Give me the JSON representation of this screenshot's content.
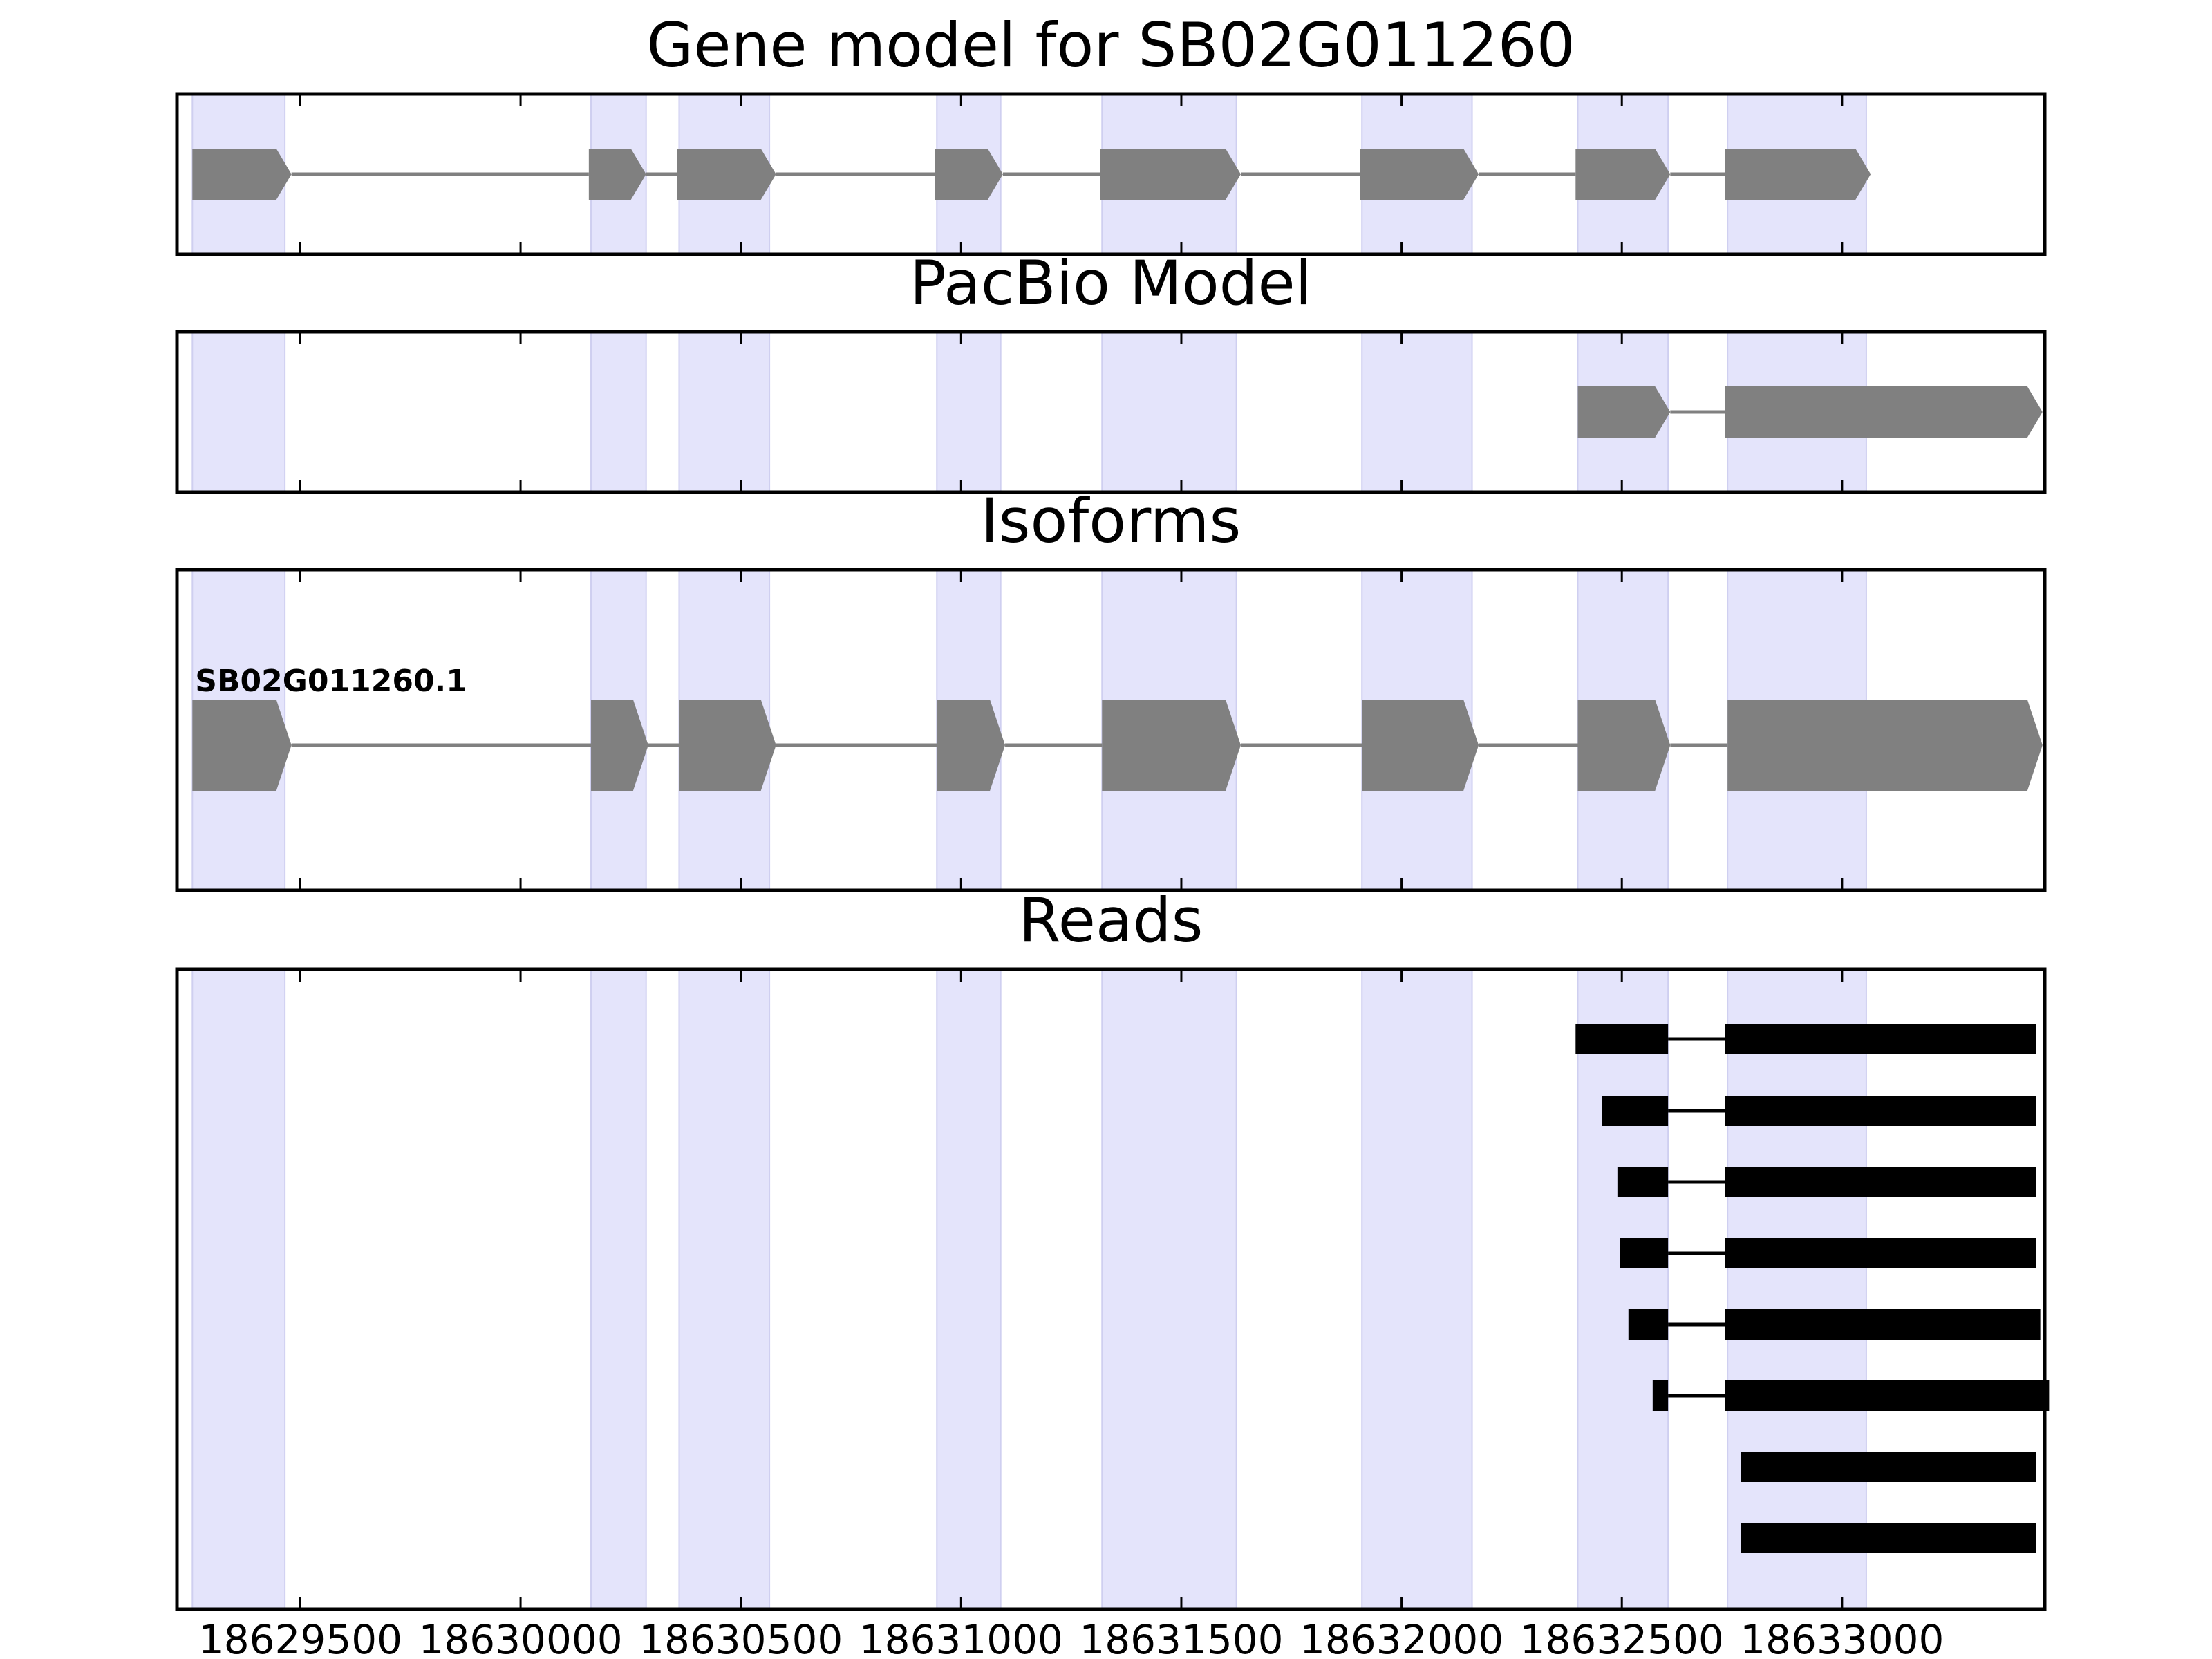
{
  "chart_data": {
    "type": "gene-track",
    "xlim": [
      18629220,
      18633460
    ],
    "ticks": [
      18629500,
      18630000,
      18630500,
      18631000,
      18631500,
      18632000,
      18632500,
      18633000
    ],
    "tick_labels": [
      "18629500",
      "18630000",
      "18630500",
      "18631000",
      "18631500",
      "18632000",
      "18632500",
      "18633000"
    ],
    "colors": {
      "shade": "#e4e4fb",
      "shade_edge": "#cfcff0",
      "model_exon": "#808080",
      "intron": "#808080",
      "read": "#000000",
      "axis": "#000000"
    },
    "shaded_regions": [
      [
        18629255,
        18629465
      ],
      [
        18630160,
        18630285
      ],
      [
        18630360,
        18630565
      ],
      [
        18630945,
        18631090
      ],
      [
        18631320,
        18631625
      ],
      [
        18631910,
        18632160
      ],
      [
        18632400,
        18632605
      ],
      [
        18632740,
        18633055
      ]
    ],
    "panels": [
      {
        "name": "gene-model",
        "title": "Gene model for SB02G011260",
        "features": [
          {
            "exons": [
              [
                18629255,
                18629480
              ],
              [
                18630155,
                18630285
              ],
              [
                18630355,
                18630580
              ],
              [
                18630940,
                18631095
              ],
              [
                18631315,
                18631635
              ],
              [
                18631905,
                18632175
              ],
              [
                18632395,
                18632610
              ],
              [
                18632735,
                18633065
              ]
            ]
          }
        ]
      },
      {
        "name": "pacbio-model",
        "title": "PacBio Model",
        "features": [
          {
            "exons": [
              [
                18632400,
                18632610
              ],
              [
                18632735,
                18633455
              ]
            ]
          }
        ]
      },
      {
        "name": "isoforms",
        "title": "Isoforms",
        "features": [
          {
            "label": "SB02G011260.1",
            "exons": [
              [
                18629255,
                18629480
              ],
              [
                18630160,
                18630290
              ],
              [
                18630360,
                18630580
              ],
              [
                18630945,
                18631100
              ],
              [
                18631320,
                18631635
              ],
              [
                18631910,
                18632175
              ],
              [
                18632400,
                18632610
              ],
              [
                18632740,
                18633455
              ]
            ]
          }
        ]
      },
      {
        "name": "reads",
        "title": "Reads",
        "features": [
          {
            "exons": [
              [
                18632395,
                18632605
              ],
              [
                18632735,
                18633440
              ]
            ]
          },
          {
            "exons": [
              [
                18632455,
                18632605
              ],
              [
                18632735,
                18633440
              ]
            ]
          },
          {
            "exons": [
              [
                18632490,
                18632605
              ],
              [
                18632735,
                18633440
              ]
            ]
          },
          {
            "exons": [
              [
                18632495,
                18632605
              ],
              [
                18632735,
                18633440
              ]
            ]
          },
          {
            "exons": [
              [
                18632515,
                18632605
              ],
              [
                18632735,
                18633450
              ]
            ]
          },
          {
            "exons": [
              [
                18632570,
                18632605
              ],
              [
                18632735,
                18633470
              ]
            ]
          },
          {
            "exons": [
              [
                18632770,
                18633440
              ]
            ]
          },
          {
            "exons": [
              [
                18632770,
                18633440
              ]
            ]
          }
        ]
      }
    ]
  }
}
